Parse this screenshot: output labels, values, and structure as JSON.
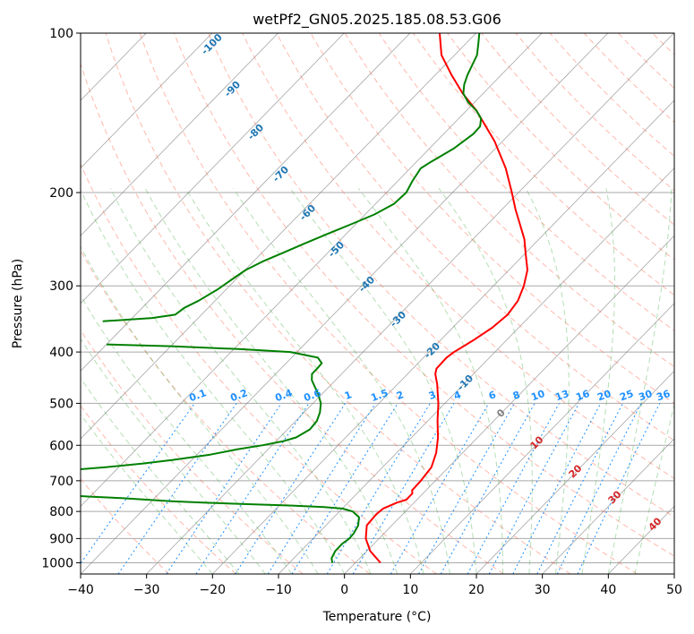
{
  "chart_data": {
    "type": "line",
    "diagram": "skew-t log-p",
    "title": "wetPf2_GN05.2025.185.08.53.G06",
    "xlabel": "Temperature (°C)",
    "ylabel": "Pressure (hPa)",
    "xlim": [
      -40,
      50
    ],
    "ylim": [
      1050,
      100
    ],
    "y_scale": "log",
    "grid": true,
    "x_ticks": [
      -40,
      -30,
      -20,
      -10,
      0,
      10,
      20,
      30,
      40,
      50
    ],
    "y_ticks": [
      100,
      200,
      300,
      400,
      500,
      600,
      700,
      800,
      900,
      1000
    ],
    "series": [
      {
        "color": "#ff0000",
        "points": [
          {
            "p": 1000,
            "t": 3.8
          },
          {
            "p": 950,
            "t": 0.5
          },
          {
            "p": 900,
            "t": -2
          },
          {
            "p": 850,
            "t": -3.8
          },
          {
            "p": 810,
            "t": -4
          },
          {
            "p": 790,
            "t": -3.8
          },
          {
            "p": 770,
            "t": -2.6
          },
          {
            "p": 760,
            "t": -1.6
          },
          {
            "p": 750,
            "t": -1.6
          },
          {
            "p": 740,
            "t": -1.6
          },
          {
            "p": 730,
            "t": -2.1
          },
          {
            "p": 700,
            "t": -2.2
          },
          {
            "p": 660,
            "t": -2.6
          },
          {
            "p": 620,
            "t": -4
          },
          {
            "p": 580,
            "t": -6
          },
          {
            "p": 540,
            "t": -8.5
          },
          {
            "p": 500,
            "t": -11
          },
          {
            "p": 460,
            "t": -14
          },
          {
            "p": 440,
            "t": -15.8
          },
          {
            "p": 430,
            "t": -16.4
          },
          {
            "p": 410,
            "t": -16.5
          },
          {
            "p": 400,
            "t": -16.2
          },
          {
            "p": 390,
            "t": -15.6
          },
          {
            "p": 380,
            "t": -15
          },
          {
            "p": 360,
            "t": -14
          },
          {
            "p": 340,
            "t": -13.6
          },
          {
            "p": 320,
            "t": -14.1
          },
          {
            "p": 300,
            "t": -15.4
          },
          {
            "p": 280,
            "t": -17.2
          },
          {
            "p": 260,
            "t": -20
          },
          {
            "p": 245,
            "t": -22.2
          },
          {
            "p": 230,
            "t": -25
          },
          {
            "p": 215,
            "t": -28
          },
          {
            "p": 200,
            "t": -31
          },
          {
            "p": 180,
            "t": -35.5
          },
          {
            "p": 160,
            "t": -41.2
          },
          {
            "p": 140,
            "t": -48.5
          },
          {
            "p": 130,
            "t": -53.1
          },
          {
            "p": 120,
            "t": -57.5
          },
          {
            "p": 110,
            "t": -62
          },
          {
            "p": 100,
            "t": -65.5
          }
        ]
      },
      {
        "color": "#008000",
        "points": [
          {
            "p": 1000,
            "t": -3.5
          },
          {
            "p": 980,
            "t": -4.3
          },
          {
            "p": 950,
            "t": -4.8
          },
          {
            "p": 920,
            "t": -4.8
          },
          {
            "p": 900,
            "t": -4.5
          },
          {
            "p": 880,
            "t": -4.6
          },
          {
            "p": 850,
            "t": -5.1
          },
          {
            "p": 820,
            "t": -6.2
          },
          {
            "p": 800,
            "t": -8
          },
          {
            "p": 790,
            "t": -10
          },
          {
            "p": 785,
            "t": -13
          },
          {
            "p": 780,
            "t": -18
          },
          {
            "p": 775,
            "t": -25
          },
          {
            "p": 770,
            "t": -32
          },
          {
            "p": 765,
            "t": -37
          },
          {
            "p": 760,
            "t": -41
          },
          {
            "p": 755,
            "t": -45
          },
          {
            "p": 750,
            "t": -50
          },
          {
            "p": 745,
            "t": -54
          },
          {
            "p": 740,
            "t": -57
          },
          {
            "p": 735,
            "t": -60
          },
          {
            "p": 730,
            "t": -63
          },
          {
            "p": 722,
            "t": -67
          },
          {
            "p": 715,
            "t": -71
          },
          {
            "p": 700,
            "t": -77
          },
          {
            "p": 690,
            "t": -72
          },
          {
            "p": 680,
            "t": -65
          },
          {
            "p": 670,
            "t": -58
          },
          {
            "p": 660,
            "t": -52
          },
          {
            "p": 650,
            "t": -47
          },
          {
            "p": 640,
            "t": -43
          },
          {
            "p": 625,
            "t": -38
          },
          {
            "p": 610,
            "t": -34.5
          },
          {
            "p": 600,
            "t": -31.5
          },
          {
            "p": 590,
            "t": -29
          },
          {
            "p": 580,
            "t": -27.5
          },
          {
            "p": 560,
            "t": -26.6
          },
          {
            "p": 540,
            "t": -26.8
          },
          {
            "p": 520,
            "t": -27.6
          },
          {
            "p": 500,
            "t": -28.8
          },
          {
            "p": 480,
            "t": -30.6
          },
          {
            "p": 465,
            "t": -32.2
          },
          {
            "p": 452,
            "t": -33.6
          },
          {
            "p": 440,
            "t": -34.5
          },
          {
            "p": 430,
            "t": -34.5
          },
          {
            "p": 420,
            "t": -34.6
          },
          {
            "p": 410,
            "t": -36
          },
          {
            "p": 400,
            "t": -41
          },
          {
            "p": 395,
            "t": -49
          },
          {
            "p": 390,
            "t": -60
          },
          {
            "p": 387,
            "t": -70
          }
        ]
      },
      {
        "color": "#008000",
        "points": [
          {
            "p": 350,
            "t": -74
          },
          {
            "p": 345,
            "t": -67
          },
          {
            "p": 340,
            "t": -64
          },
          {
            "p": 330,
            "t": -63.6
          },
          {
            "p": 320,
            "t": -62.5
          },
          {
            "p": 305,
            "t": -61.3
          },
          {
            "p": 290,
            "t": -60.5
          },
          {
            "p": 280,
            "t": -59.9
          },
          {
            "p": 270,
            "t": -58.6
          },
          {
            "p": 260,
            "t": -56.8
          },
          {
            "p": 250,
            "t": -55
          },
          {
            "p": 240,
            "t": -53
          },
          {
            "p": 230,
            "t": -50.8
          },
          {
            "p": 220,
            "t": -48.6
          },
          {
            "p": 210,
            "t": -47.2
          },
          {
            "p": 200,
            "t": -47
          },
          {
            "p": 190,
            "t": -47.8
          },
          {
            "p": 180,
            "t": -48.4
          },
          {
            "p": 175,
            "t": -47.8
          },
          {
            "p": 165,
            "t": -46.3
          },
          {
            "p": 155,
            "t": -45.5
          },
          {
            "p": 150,
            "t": -45.6
          },
          {
            "p": 145,
            "t": -46.6
          },
          {
            "p": 140,
            "t": -48.5
          },
          {
            "p": 135,
            "t": -51
          },
          {
            "p": 130,
            "t": -53
          },
          {
            "p": 125,
            "t": -54.2
          },
          {
            "p": 120,
            "t": -55.1
          },
          {
            "p": 110,
            "t": -56.6
          },
          {
            "p": 105,
            "t": -58
          },
          {
            "p": 100,
            "t": -59.5
          }
        ]
      }
    ],
    "dry_adiabat_labels": [
      "-100",
      "-90",
      "-80",
      "-70",
      "-60",
      "-50",
      "-40",
      "-30",
      "-20",
      "-10",
      "0",
      "10",
      "20",
      "30",
      "40"
    ],
    "mixing_ratio_labels": [
      "0.1",
      "0.2",
      "0.4",
      "0.6",
      "1",
      "1.5",
      "2",
      "3",
      "4",
      "6",
      "8",
      "10",
      "13",
      "16",
      "20",
      "25",
      "30",
      "36"
    ],
    "mixing_ratio_values": [
      0.1,
      0.2,
      0.4,
      0.6,
      1,
      1.5,
      2,
      3,
      4,
      6,
      8,
      10,
      13,
      16,
      20,
      25,
      30,
      36
    ],
    "colors": {
      "isotherm": "#808080",
      "isobar": "#a9a9a9",
      "dry_adiabat": "#ff6347",
      "moist_adiabat": "#2ca02c",
      "mixing_ratio": "#1e90ff",
      "dry_label_cold": "#1f77b4",
      "dry_label_warm": "#d62728",
      "mixing_label": "#1e90ff"
    }
  }
}
